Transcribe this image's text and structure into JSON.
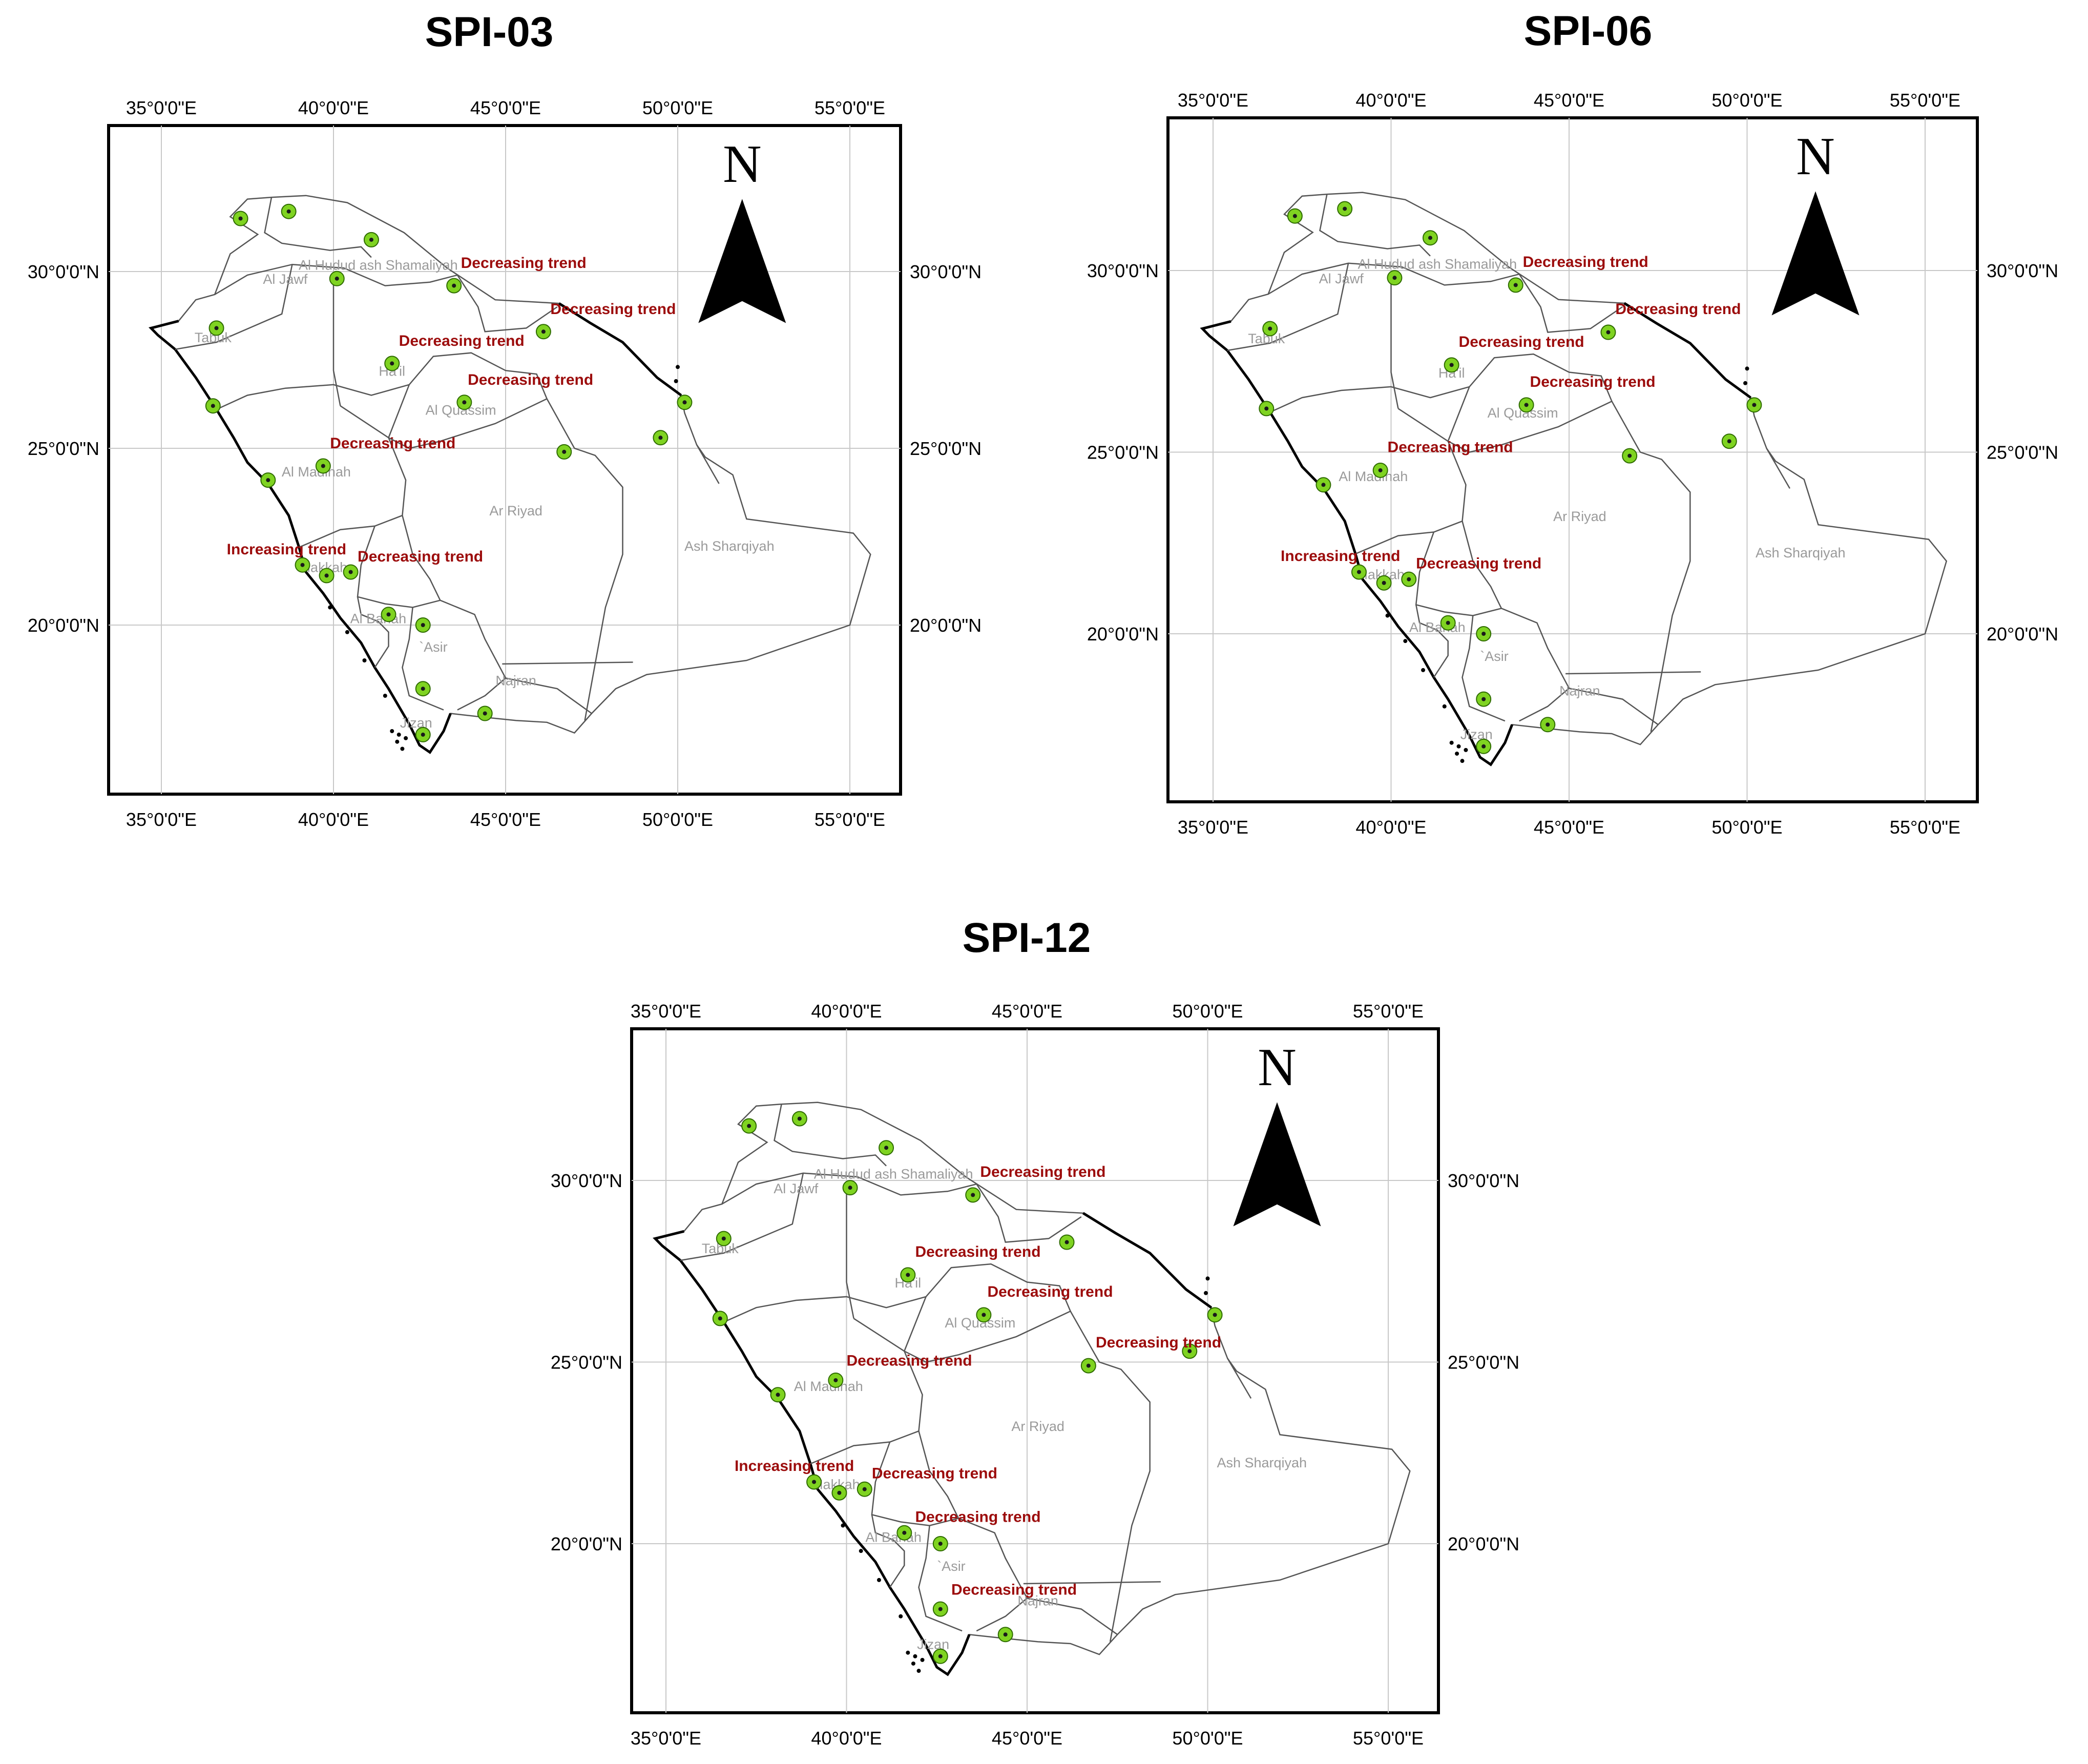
{
  "colors": {
    "station_fill": "#7fd321",
    "station_stroke": "#2e6b00",
    "station_center": "#1a1a1a",
    "trend_text": "#9c0c0c",
    "region_text": "#9a9a9a",
    "border": "#555555",
    "grid": "#c8c8c8",
    "coast": "#000000"
  },
  "icons": {
    "north_arrow": "north-arrow-icon",
    "station": "weather-station-dot-icon"
  },
  "axes": {
    "lon_labels": [
      "35°0'0\"E",
      "40°0'0\"E",
      "45°0'0\"E",
      "50°0'0\"E",
      "55°0'0\"E"
    ],
    "lat_labels": [
      "30°0'0\"N",
      "25°0'0\"N",
      "20°0'0\"N"
    ]
  },
  "north_label": "N",
  "regions": [
    {
      "name": "Al Hudud ash Shamaliyah",
      "lon": 41.3,
      "lat": 30.05
    },
    {
      "name": "Al Jawf",
      "lon": 38.6,
      "lat": 29.65
    },
    {
      "name": "Tabuk",
      "lon": 36.5,
      "lat": 28.0
    },
    {
      "name": "Ha'il",
      "lon": 41.7,
      "lat": 27.05
    },
    {
      "name": "Al Quassim",
      "lon": 43.7,
      "lat": 25.95
    },
    {
      "name": "Al Madinah",
      "lon": 39.5,
      "lat": 24.2
    },
    {
      "name": "Ar Riyad",
      "lon": 45.3,
      "lat": 23.1
    },
    {
      "name": "Ash Sharqiyah",
      "lon": 51.5,
      "lat": 22.1
    },
    {
      "name": "Makkah",
      "lon": 39.7,
      "lat": 21.5
    },
    {
      "name": "Al Bahah",
      "lon": 41.3,
      "lat": 20.05
    },
    {
      "name": "`Asir",
      "lon": 42.9,
      "lat": 19.25
    },
    {
      "name": "Najran",
      "lon": 45.3,
      "lat": 18.3
    },
    {
      "name": "Jizan",
      "lon": 42.4,
      "lat": 17.1
    }
  ],
  "stations": [
    {
      "lon": 37.3,
      "lat": 31.5
    },
    {
      "lon": 38.7,
      "lat": 31.7
    },
    {
      "lon": 41.1,
      "lat": 30.9
    },
    {
      "lon": 40.1,
      "lat": 29.8
    },
    {
      "lon": 43.5,
      "lat": 29.6
    },
    {
      "lon": 36.6,
      "lat": 28.4
    },
    {
      "lon": 46.1,
      "lat": 28.3
    },
    {
      "lon": 41.7,
      "lat": 27.4
    },
    {
      "lon": 43.8,
      "lat": 26.3
    },
    {
      "lon": 36.5,
      "lat": 26.2
    },
    {
      "lon": 50.2,
      "lat": 26.3
    },
    {
      "lon": 49.5,
      "lat": 25.3
    },
    {
      "lon": 46.7,
      "lat": 24.9
    },
    {
      "lon": 39.7,
      "lat": 24.5
    },
    {
      "lon": 38.1,
      "lat": 24.1
    },
    {
      "lon": 39.1,
      "lat": 21.7
    },
    {
      "lon": 39.8,
      "lat": 21.4
    },
    {
      "lon": 40.5,
      "lat": 21.5
    },
    {
      "lon": 41.6,
      "lat": 20.3
    },
    {
      "lon": 42.6,
      "lat": 20.0
    },
    {
      "lon": 42.6,
      "lat": 18.2
    },
    {
      "lon": 44.4,
      "lat": 17.5
    },
    {
      "lon": 42.6,
      "lat": 16.9
    }
  ],
  "panels": [
    {
      "title": "SPI-03",
      "trends": [
        {
          "text": "Decreasing trend",
          "lon": 43.7,
          "lat": 30.1
        },
        {
          "text": "Decreasing trend",
          "lon": 46.3,
          "lat": 28.8
        },
        {
          "text": "Decreasing trend",
          "lon": 41.9,
          "lat": 27.9
        },
        {
          "text": "Decreasing trend",
          "lon": 43.9,
          "lat": 26.8
        },
        {
          "text": "Decreasing trend",
          "lon": 39.9,
          "lat": 25.0
        },
        {
          "text": "Increasing trend",
          "lon": 36.9,
          "lat": 22.0
        },
        {
          "text": "Decreasing trend",
          "lon": 40.7,
          "lat": 21.8
        }
      ]
    },
    {
      "title": "SPI-06",
      "trends": [
        {
          "text": "Decreasing trend",
          "lon": 43.7,
          "lat": 30.1
        },
        {
          "text": "Decreasing trend",
          "lon": 46.3,
          "lat": 28.8
        },
        {
          "text": "Decreasing trend",
          "lon": 41.9,
          "lat": 27.9
        },
        {
          "text": "Decreasing trend",
          "lon": 43.9,
          "lat": 26.8
        },
        {
          "text": "Decreasing trend",
          "lon": 39.9,
          "lat": 25.0
        },
        {
          "text": "Increasing trend",
          "lon": 36.9,
          "lat": 22.0
        },
        {
          "text": "Decreasing trend",
          "lon": 40.7,
          "lat": 21.8
        }
      ]
    },
    {
      "title": "SPI-12",
      "trends": [
        {
          "text": "Decreasing trend",
          "lon": 43.7,
          "lat": 30.1
        },
        {
          "text": "Decreasing trend",
          "lon": 41.9,
          "lat": 27.9
        },
        {
          "text": "Decreasing trend",
          "lon": 43.9,
          "lat": 26.8
        },
        {
          "text": "Decreasing trend",
          "lon": 46.9,
          "lat": 25.4
        },
        {
          "text": "Decreasing trend",
          "lon": 40.0,
          "lat": 24.9
        },
        {
          "text": "Increasing trend",
          "lon": 36.9,
          "lat": 22.0
        },
        {
          "text": "Decreasing trend",
          "lon": 40.7,
          "lat": 21.8
        },
        {
          "text": "Decreasing trend",
          "lon": 41.9,
          "lat": 20.6
        },
        {
          "text": "Decreasing trend",
          "lon": 42.9,
          "lat": 18.6
        }
      ]
    }
  ]
}
